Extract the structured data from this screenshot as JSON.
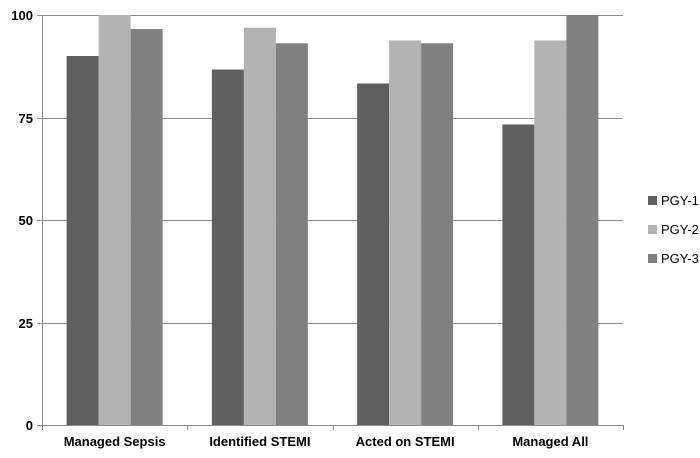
{
  "chart_data": {
    "type": "bar",
    "categories": [
      "Managed Sepsis",
      "Identified STEMI",
      "Acted on STEMI",
      "Managed All"
    ],
    "series": [
      {
        "name": "PGY-1",
        "color": "#5f5f5f",
        "values": [
          90,
          86.7,
          83.3,
          73.3
        ]
      },
      {
        "name": "PGY-2",
        "color": "#b3b3b3",
        "values": [
          100,
          96.9,
          93.8,
          93.8
        ]
      },
      {
        "name": "PGY-3",
        "color": "#808080",
        "values": [
          96.6,
          93.1,
          93.1,
          100
        ]
      }
    ],
    "title": "",
    "xlabel": "",
    "ylabel": "",
    "ylim": [
      0,
      100
    ],
    "yticks": [
      0,
      25,
      50,
      75,
      100
    ],
    "grid": true,
    "legend_position": "right"
  }
}
